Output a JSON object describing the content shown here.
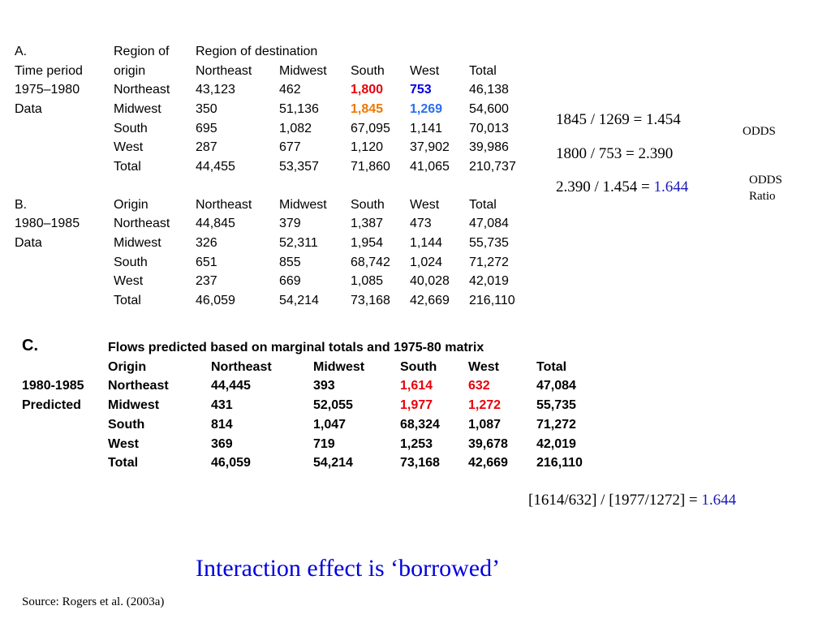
{
  "tableA": {
    "header1": {
      "label": "A.",
      "region_of": "Region of",
      "region_dest": "Region of destination"
    },
    "header2": [
      "Time period",
      "origin",
      "Northeast",
      "Midwest",
      "South",
      "West",
      "Total"
    ],
    "period": [
      "1975–1980",
      "Data"
    ],
    "rows": [
      [
        "Northeast",
        "43,123",
        "462",
        "1,800",
        "753",
        "46,138"
      ],
      [
        "Midwest",
        "350",
        "51,136",
        "1,845",
        "1,269",
        "54,600"
      ],
      [
        "South",
        "695",
        "1,082",
        "67,095",
        "1,141",
        "70,013"
      ],
      [
        "West",
        "287",
        "677",
        "1,120",
        "37,902",
        "39,986"
      ],
      [
        "Total",
        "44,455",
        "53,357",
        "71,860",
        "41,065",
        "210,737"
      ]
    ]
  },
  "tableB": {
    "header": [
      "B.",
      "Origin",
      "Northeast",
      "Midwest",
      "South",
      "West",
      "Total"
    ],
    "period": [
      "1980–1985",
      "Data"
    ],
    "rows": [
      [
        "Northeast",
        "44,845",
        "379",
        "1,387",
        "473",
        "47,084"
      ],
      [
        "Midwest",
        "326",
        "52,311",
        "1,954",
        "1,144",
        "55,735"
      ],
      [
        "South",
        "651",
        "855",
        "68,742",
        "1,024",
        "71,272"
      ],
      [
        "West",
        "237",
        "669",
        "1,085",
        "40,028",
        "42,019"
      ],
      [
        "Total",
        "46,059",
        "54,214",
        "73,168",
        "42,669",
        "216,110"
      ]
    ]
  },
  "tableC": {
    "label": "C.",
    "title": "Flows predicted based on marginal totals and 1975-80 matrix",
    "header": [
      "Origin",
      "Northeast",
      "Midwest",
      "South",
      "West",
      "Total"
    ],
    "period": [
      "1980-1985",
      "Predicted"
    ],
    "rows": [
      [
        "Northeast",
        "44,445",
        "393",
        "1,614",
        "632",
        "47,084"
      ],
      [
        "Midwest",
        "431",
        "52,055",
        "1,977",
        "1,272",
        "55,735"
      ],
      [
        "South",
        "814",
        "1,047",
        "68,324",
        "1,087",
        "71,272"
      ],
      [
        "West",
        "369",
        "719",
        "1,253",
        "39,678",
        "42,019"
      ],
      [
        "Total",
        "46,059",
        "54,214",
        "73,168",
        "42,669",
        "216,110"
      ]
    ]
  },
  "calc": {
    "line1": "1845 / 1269 = 1.454",
    "line2": "1800 / 753 = 2.390",
    "line3_prefix": "2.390 / 1.454 = ",
    "line3_value": "1.644",
    "odds": "ODDS",
    "odds_ratio_1": "ODDS",
    "odds_ratio_2": "Ratio",
    "c_formula_prefix": "[1614/632] / [1977/1272] = ",
    "c_formula_value": "1.644"
  },
  "headline": "Interaction effect is ‘borrowed’",
  "source": "Source: Rogers et al. (2003a)",
  "colors": {
    "red": "#e8000b",
    "blue": "#0000e0",
    "orange": "#f07800",
    "light_blue": "#2a6ef0",
    "navy": "#1a1ab4"
  }
}
